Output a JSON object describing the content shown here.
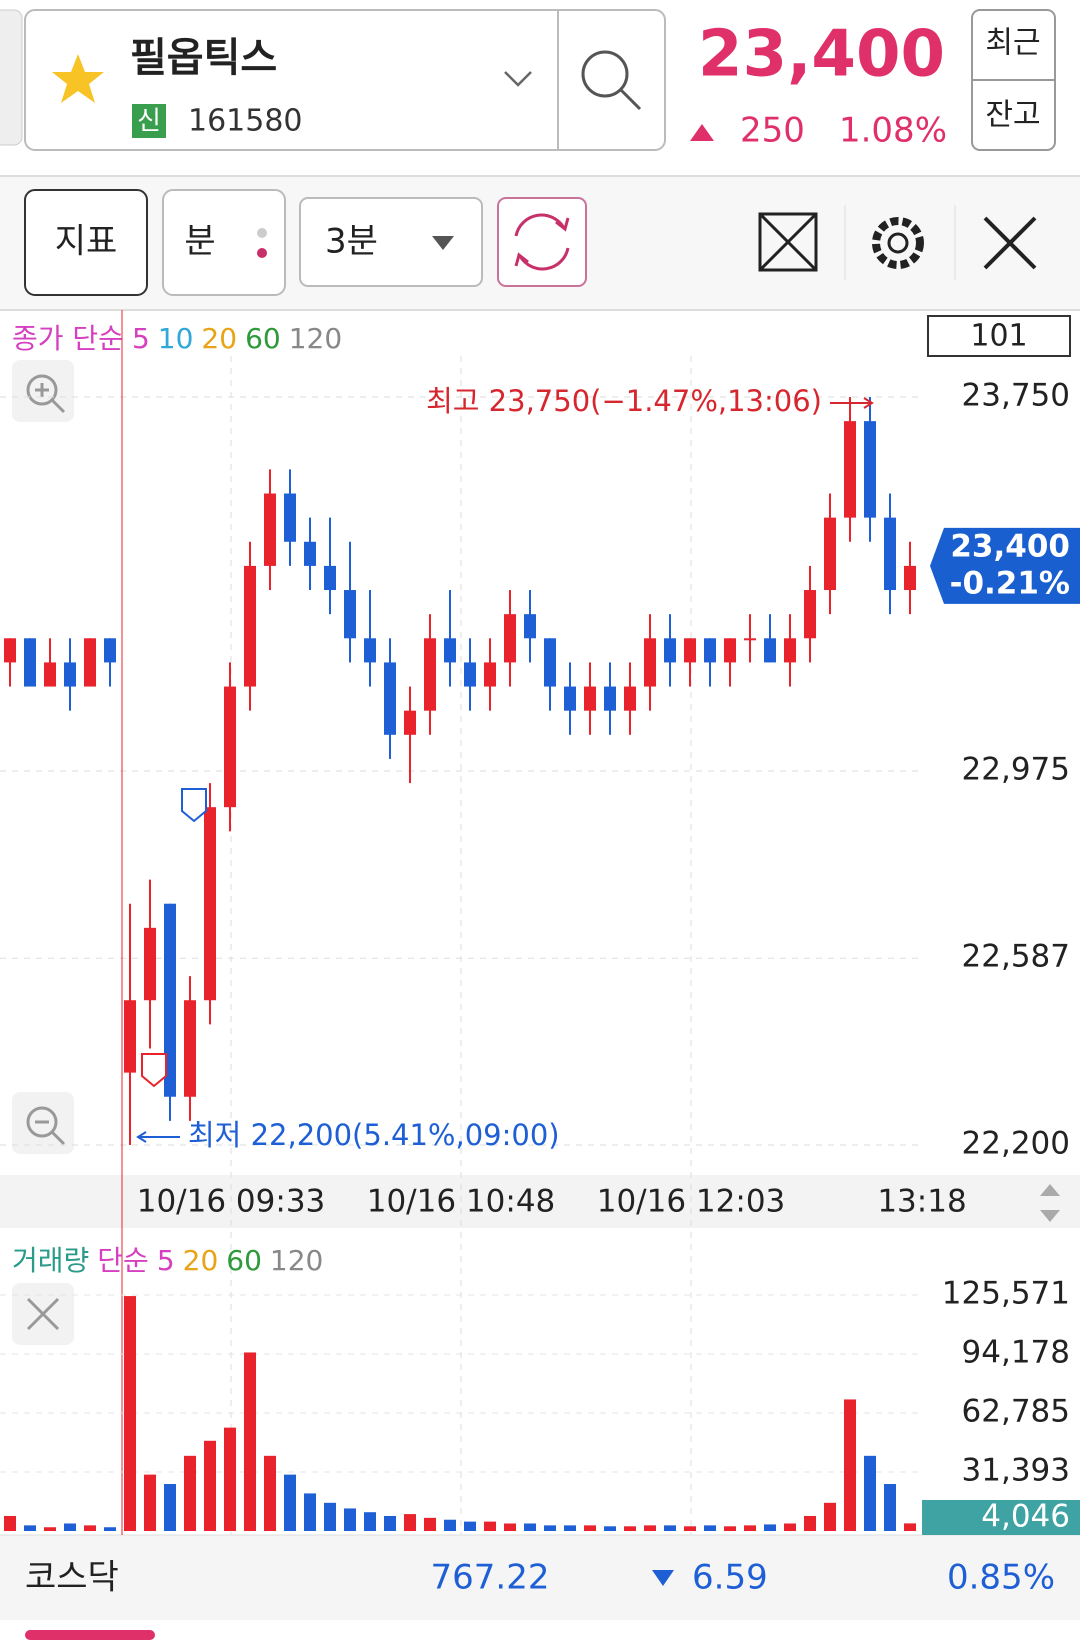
{
  "header": {
    "name": "필옵틱스",
    "badge": "신",
    "code": "161580",
    "price": "23,400",
    "change": "250",
    "change_rate": "1.08%",
    "buttons": [
      "최근",
      "잔고"
    ]
  },
  "toolbar": {
    "buttons": [
      "지표",
      "분",
      "3분"
    ]
  },
  "chart_data": [
    {
      "type": "candlestick",
      "legend": [
        {
          "text": "종가 단순",
          "color": "#d63fbf"
        },
        {
          "text": "5",
          "color": "#d63fbf"
        },
        {
          "text": "10",
          "color": "#2ea8d8"
        },
        {
          "text": "20",
          "color": "#e8a317"
        },
        {
          "text": "60",
          "color": "#2e9a3a"
        },
        {
          "text": "120",
          "color": "#888888"
        }
      ],
      "indicator_box": "101",
      "up_color": "#e8232c",
      "down_color": "#1f5fd6",
      "ylim": [
        22200,
        23750
      ],
      "yticks": [
        {
          "value": 23750,
          "label": "23,750"
        },
        {
          "value": 22975,
          "label": "22,975"
        },
        {
          "value": 22587,
          "label": "22,587"
        },
        {
          "value": 22200,
          "label": "22,200"
        }
      ],
      "time_labels": [
        "10/16 09:33",
        "10/16 10:48",
        "10/16 12:03",
        "13:18"
      ],
      "open": [
        23200,
        23250,
        23150,
        23200,
        23150,
        23250,
        22350,
        22500,
        22700,
        22300,
        22500,
        22900,
        23150,
        23400,
        23550,
        23450,
        23400,
        23350,
        23250,
        23200,
        23050,
        23100,
        23250,
        23200,
        23150,
        23200,
        23300,
        23250,
        23150,
        23100,
        23150,
        23100,
        23150,
        23250,
        23200,
        23250,
        23200,
        23250,
        23250,
        23200,
        23250,
        23350,
        23500,
        23700,
        23500,
        23350
      ],
      "high": [
        23250,
        23250,
        23250,
        23250,
        23250,
        23250,
        22700,
        22750,
        22700,
        22550,
        22950,
        23200,
        23450,
        23600,
        23600,
        23500,
        23500,
        23450,
        23350,
        23250,
        23150,
        23300,
        23350,
        23250,
        23250,
        23350,
        23350,
        23250,
        23200,
        23200,
        23200,
        23200,
        23300,
        23300,
        23250,
        23250,
        23250,
        23300,
        23300,
        23300,
        23400,
        23550,
        23750,
        23750,
        23550,
        23450
      ],
      "low": [
        23150,
        23150,
        23150,
        23100,
        23150,
        23150,
        22200,
        22400,
        22250,
        22250,
        22450,
        22850,
        23100,
        23350,
        23400,
        23350,
        23300,
        23200,
        23150,
        23000,
        22950,
        23050,
        23150,
        23100,
        23100,
        23150,
        23200,
        23100,
        23050,
        23050,
        23050,
        23050,
        23100,
        23150,
        23150,
        23150,
        23150,
        23200,
        23200,
        23150,
        23200,
        23300,
        23450,
        23450,
        23300,
        23300
      ],
      "close": [
        23250,
        23150,
        23200,
        23150,
        23250,
        23200,
        22500,
        22650,
        22300,
        22500,
        22900,
        23150,
        23400,
        23550,
        23450,
        23400,
        23350,
        23250,
        23200,
        23050,
        23100,
        23250,
        23200,
        23150,
        23200,
        23300,
        23250,
        23150,
        23100,
        23150,
        23100,
        23150,
        23250,
        23200,
        23250,
        23200,
        23250,
        23250,
        23200,
        23250,
        23350,
        23500,
        23700,
        23500,
        23350,
        23400
      ],
      "annotations": {
        "high": "최고 23,750(−1.47%,13:06)",
        "low": "최저 22,200(5.41%,09:00)"
      },
      "current_price": {
        "value": 23400,
        "label": "23,400",
        "change": "-0.21%"
      }
    },
    {
      "type": "bar",
      "legend": [
        {
          "text": "거래량",
          "color": "#2a9a8a"
        },
        {
          "text": "단순",
          "color": "#d63fbf"
        },
        {
          "text": "5",
          "color": "#d63fbf"
        },
        {
          "text": "20",
          "color": "#e8a317"
        },
        {
          "text": "60",
          "color": "#2e9a3a"
        },
        {
          "text": "120",
          "color": "#888888"
        }
      ],
      "up_color": "#e8232c",
      "down_color": "#1f5fd6",
      "ylim": [
        0,
        125571
      ],
      "yticks": [
        {
          "value": 125571,
          "label": "125,571"
        },
        {
          "value": 94178,
          "label": "94,178"
        },
        {
          "value": 62785,
          "label": "62,785"
        },
        {
          "value": 31393,
          "label": "31,393"
        }
      ],
      "values": [
        8000,
        3000,
        2000,
        4000,
        3000,
        2000,
        125000,
        30000,
        25000,
        40000,
        48000,
        55000,
        95000,
        40000,
        30000,
        20000,
        15000,
        12000,
        10000,
        8000,
        9000,
        7000,
        6000,
        5000,
        5000,
        4000,
        4000,
        3000,
        3000,
        3000,
        2500,
        2500,
        3000,
        3000,
        2500,
        3000,
        2500,
        3000,
        3500,
        4000,
        8000,
        15000,
        70000,
        40000,
        25000,
        4046
      ],
      "current": {
        "value": 4046,
        "label": "4,046"
      }
    }
  ],
  "footer": {
    "index": "코스닥",
    "value": "767.22",
    "change": "6.59",
    "rate": "0.85%"
  }
}
